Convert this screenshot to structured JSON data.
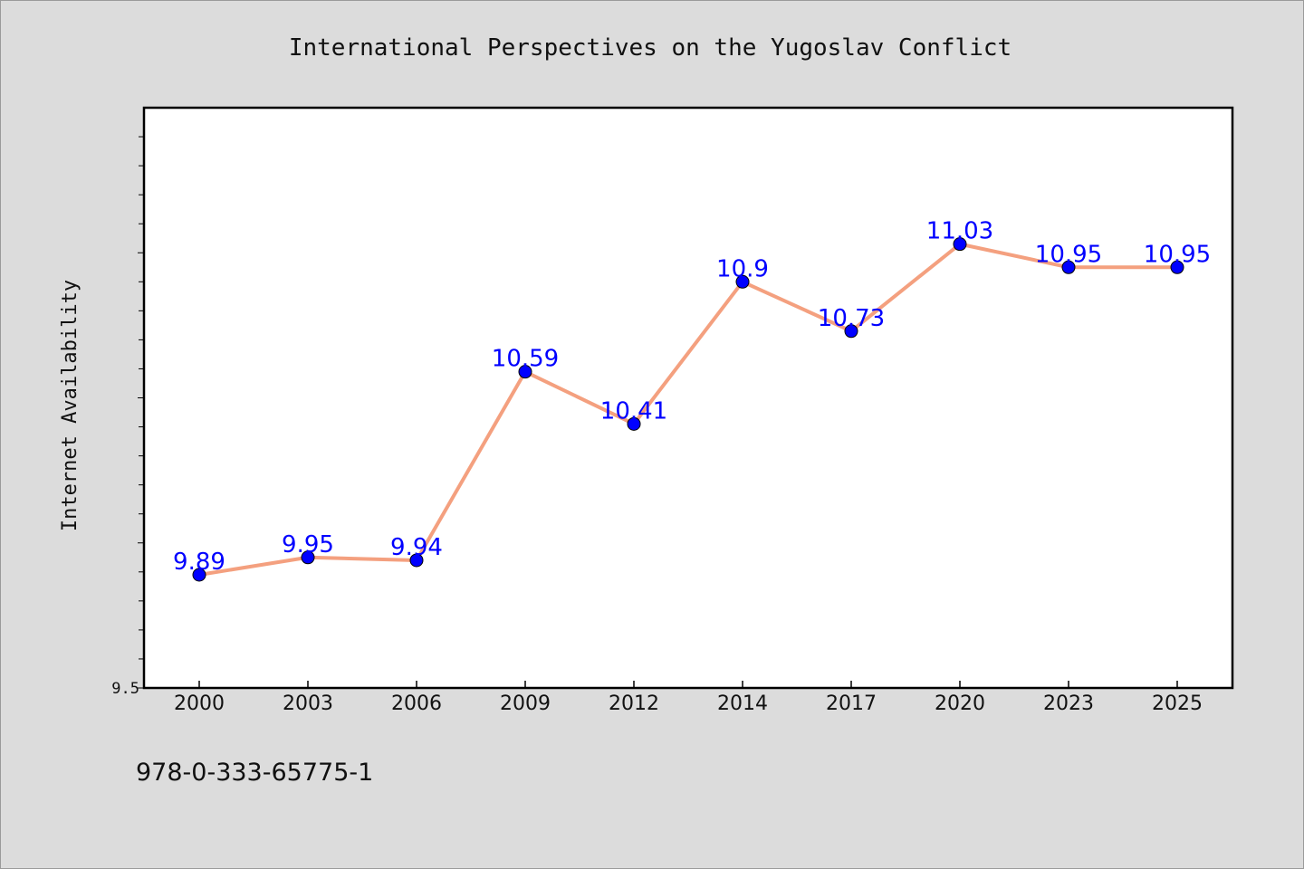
{
  "chart_data": {
    "type": "line",
    "title": "International Perspectives on the Yugoslav Conflict",
    "xlabel": "",
    "ylabel": "Internet Availability",
    "categories": [
      "2000",
      "2003",
      "2006",
      "2009",
      "2012",
      "2014",
      "2017",
      "2020",
      "2023",
      "2025"
    ],
    "values": [
      9.89,
      9.95,
      9.94,
      10.59,
      10.41,
      10.9,
      10.73,
      11.03,
      10.95,
      10.95
    ],
    "ylim": [
      9.5,
      11.5
    ],
    "y_tick_labels": [
      "9.5"
    ],
    "data_labels": [
      "9.89",
      "9.95",
      "9.94",
      "10.59",
      "10.41",
      "10.9",
      "10.73",
      "11.03",
      "10.95",
      "10.95"
    ],
    "grid": false,
    "line_color": "#f4a07f",
    "marker_color": "#0000ff",
    "label_color": "#0000ff"
  },
  "footer_text": "978-0-333-65775-1"
}
